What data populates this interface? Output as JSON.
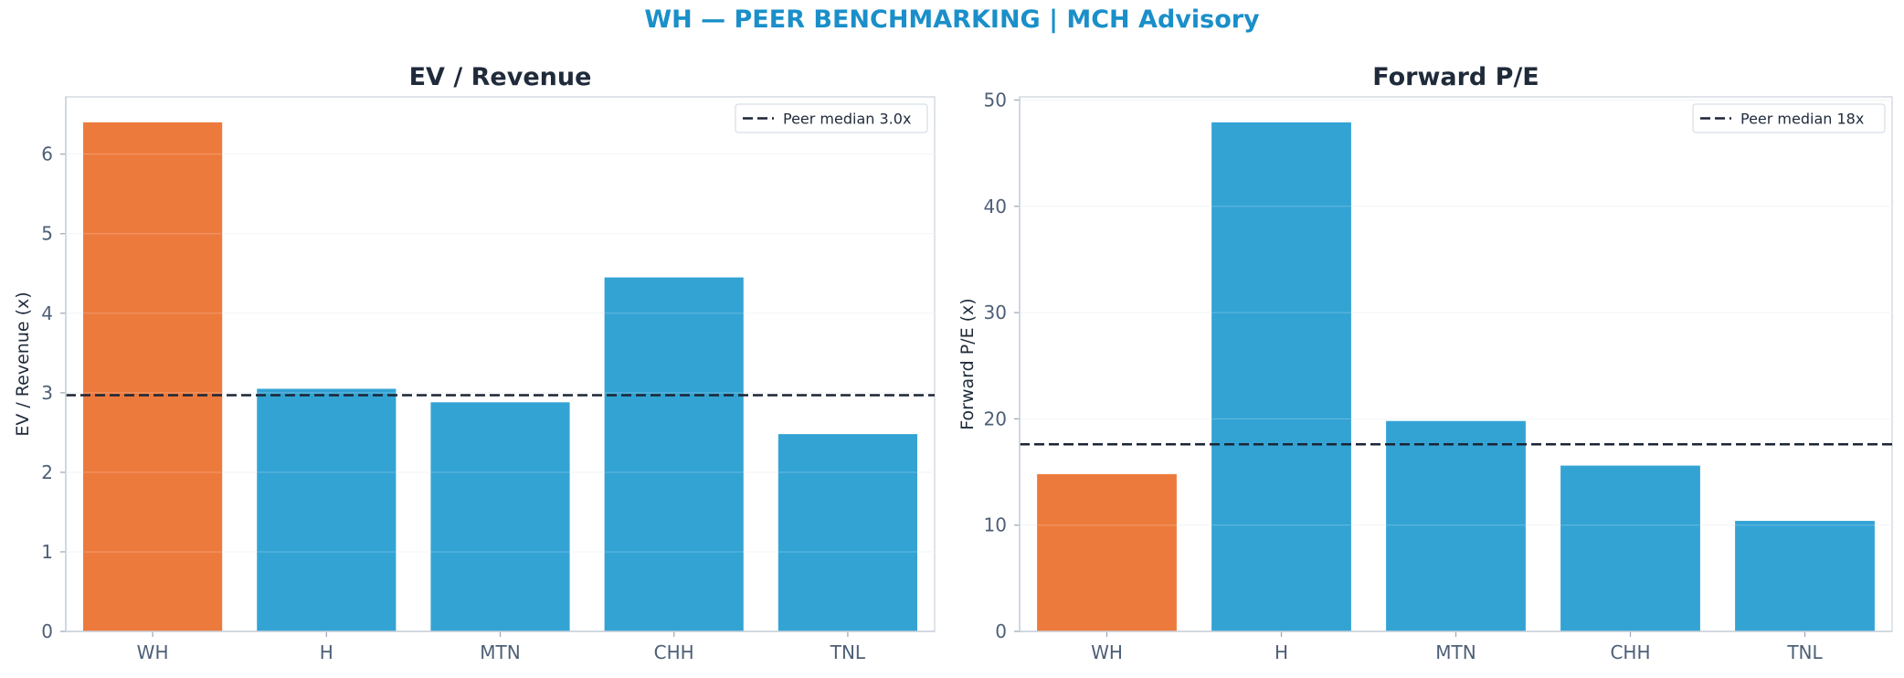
{
  "suptitle": "WH — PEER BENCHMARKING | MCH Advisory",
  "colors": {
    "highlight": "#ed7a3d",
    "peer": "#33a3d4",
    "median_line": "#1b2535",
    "title": "#1a8fc9"
  },
  "chart_data": [
    {
      "type": "bar",
      "title": "EV / Revenue",
      "ylabel": "EV / Revenue (x)",
      "categories": [
        "WH",
        "H",
        "MTN",
        "CHH",
        "TNL"
      ],
      "values": [
        6.4,
        3.05,
        2.88,
        4.45,
        2.48
      ],
      "highlight": "WH",
      "ylim": [
        0,
        6.72
      ],
      "yticks": [
        "0",
        "1",
        "2",
        "3",
        "4",
        "5",
        "6"
      ],
      "ytick_values": [
        0,
        1,
        2,
        3,
        4,
        5,
        6
      ],
      "reference_line": {
        "value": 2.97,
        "label": "Peer median 3.0x",
        "style": "dashed"
      },
      "legend": "top-right",
      "grid": "y"
    },
    {
      "type": "bar",
      "title": "Forward P/E",
      "ylabel": "Forward P/E (x)",
      "categories": [
        "WH",
        "H",
        "MTN",
        "CHH",
        "TNL"
      ],
      "values": [
        14.8,
        47.9,
        19.8,
        15.6,
        10.4
      ],
      "highlight": "WH",
      "ylim": [
        0,
        50.3
      ],
      "yticks": [
        "0",
        "10",
        "20",
        "30",
        "40",
        "50"
      ],
      "ytick_values": [
        0,
        10,
        20,
        30,
        40,
        50
      ],
      "reference_line": {
        "value": 17.6,
        "label": "Peer median 18x",
        "style": "dashed"
      },
      "legend": "top-right",
      "grid": "y"
    }
  ]
}
